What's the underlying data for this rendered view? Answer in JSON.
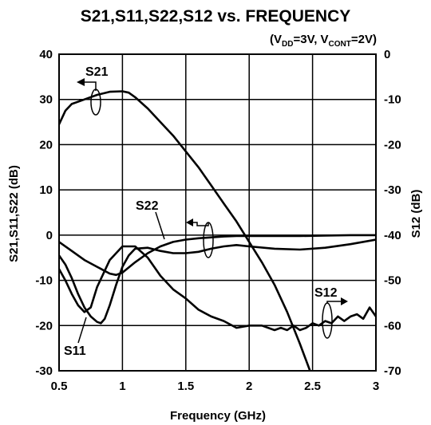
{
  "chart_data": {
    "type": "line",
    "title": "S21,S11,S22,S12 vs. FREQUENCY",
    "conditions": {
      "open": "(V",
      "vdd_sub": "DD",
      "vdd_val": "=3V, V",
      "vcont_sub": "CONT",
      "close": "=2V)"
    },
    "xlabel": "Frequency (GHz)",
    "ylabel_left": "S21,S11,S22 (dB)",
    "ylabel_right": "S12 (dB)",
    "xlim": [
      0.5,
      3
    ],
    "ylim_left": [
      -30,
      40
    ],
    "ylim_right": [
      -70,
      0
    ],
    "x_ticks": [
      "0.5",
      "1",
      "1.5",
      "2",
      "2.5",
      "3"
    ],
    "y_ticks_left": [
      "40",
      "30",
      "20",
      "10",
      "0",
      "-10",
      "-20",
      "-30"
    ],
    "y_ticks_right": [
      "0",
      "-10",
      "-20",
      "-30",
      "-40",
      "-50",
      "-60",
      "-70"
    ],
    "grid": true,
    "series": [
      {
        "name": "S21",
        "axis": "left",
        "x": [
          0.5,
          0.55,
          0.6,
          0.7,
          0.8,
          0.9,
          1.0,
          1.05,
          1.1,
          1.2,
          1.3,
          1.4,
          1.5,
          1.6,
          1.7,
          1.8,
          1.9,
          2.0,
          2.1,
          2.2,
          2.3,
          2.4,
          2.48
        ],
        "y": [
          24.5,
          27.5,
          29,
          30,
          31,
          31.7,
          31.8,
          31.5,
          30.5,
          28,
          25,
          22,
          18.5,
          15,
          11,
          7,
          3,
          -1.5,
          -6,
          -11,
          -17,
          -24,
          -30
        ]
      },
      {
        "name": "S11",
        "axis": "left",
        "x": [
          0.5,
          0.55,
          0.6,
          0.65,
          0.7,
          0.75,
          0.8,
          0.83,
          0.86,
          0.9,
          0.95,
          1.0,
          1.05,
          1.1,
          1.2,
          1.3,
          1.4,
          1.5,
          1.6,
          1.7,
          1.8,
          1.9,
          2.0,
          2.2,
          2.4,
          2.6,
          2.8,
          3.0
        ],
        "y": [
          -4.5,
          -6.5,
          -9.5,
          -13,
          -16,
          -18,
          -19.2,
          -19.5,
          -18.5,
          -15.5,
          -11,
          -7,
          -4.5,
          -3,
          -2.8,
          -3.5,
          -4,
          -4,
          -3.7,
          -3,
          -2.5,
          -2.2,
          -2.5,
          -3,
          -3.2,
          -2.8,
          -2,
          -1
        ]
      },
      {
        "name": "S22",
        "axis": "left",
        "x": [
          0.5,
          0.6,
          0.7,
          0.8,
          0.9,
          0.95,
          1.0,
          1.1,
          1.2,
          1.3,
          1.4,
          1.5,
          1.6,
          1.7,
          1.8,
          1.9,
          2.0,
          2.2,
          2.4,
          2.6,
          2.8,
          3.0
        ],
        "y": [
          -1.5,
          -3.5,
          -5.5,
          -7,
          -8.5,
          -8.8,
          -8.3,
          -6,
          -4,
          -2.5,
          -1.5,
          -1,
          -0.7,
          -0.5,
          -0.3,
          -0.2,
          -0.2,
          -0.2,
          -0.2,
          -0.1,
          0,
          0
        ]
      },
      {
        "name": "S12",
        "axis": "right",
        "x": [
          0.5,
          0.55,
          0.6,
          0.65,
          0.7,
          0.75,
          0.8,
          0.9,
          1.0,
          1.1,
          1.2,
          1.3,
          1.4,
          1.5,
          1.6,
          1.7,
          1.8,
          1.9,
          2.0,
          2.1,
          2.2,
          2.25,
          2.3,
          2.35,
          2.4,
          2.45,
          2.5,
          2.55,
          2.6,
          2.65,
          2.7,
          2.75,
          2.8,
          2.85,
          2.9,
          2.95,
          3.0
        ],
        "y": [
          -47.5,
          -50,
          -53,
          -55.5,
          -57,
          -56,
          -51.5,
          -45.5,
          -42.5,
          -42.5,
          -45,
          -49,
          -52,
          -54,
          -56.5,
          -58,
          -59,
          -60.5,
          -60,
          -60,
          -61,
          -60.5,
          -61,
          -60,
          -61,
          -60.5,
          -59.5,
          -60,
          -59,
          -59.5,
          -58,
          -59,
          -58,
          -57.5,
          -58.5,
          -56,
          -58
        ]
      }
    ],
    "annotations": [
      "S21",
      "S11",
      "S22",
      "S12"
    ]
  }
}
